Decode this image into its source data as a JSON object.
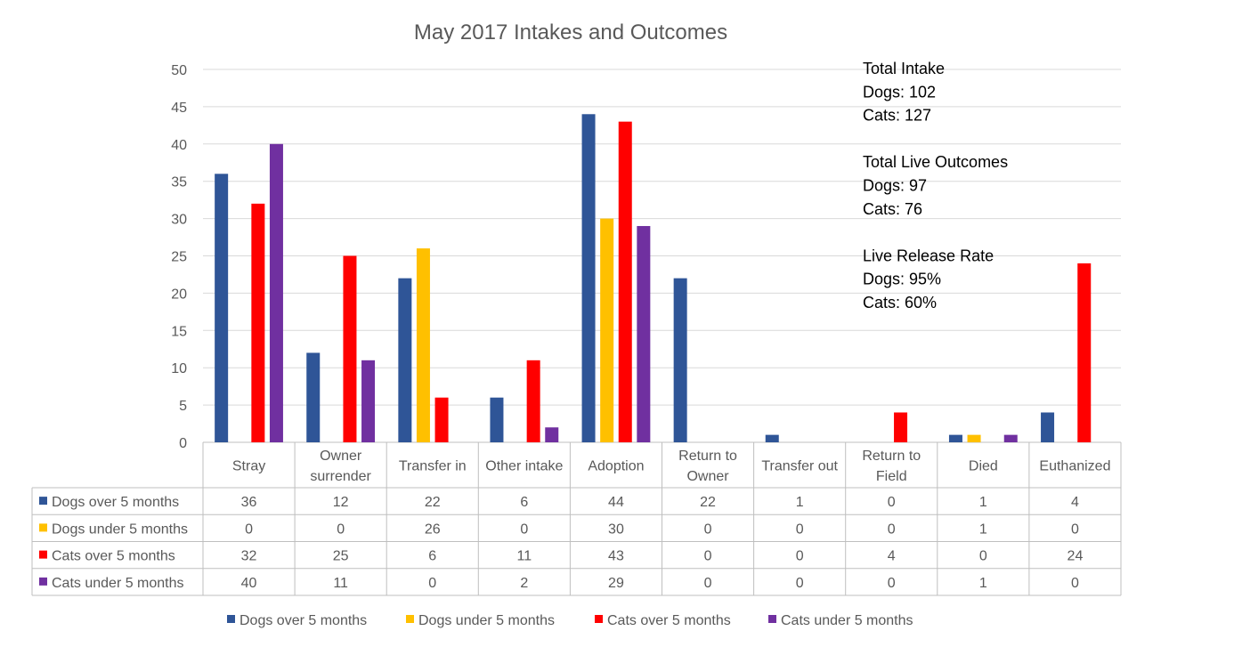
{
  "chart_data": {
    "type": "bar",
    "title": "May 2017 Intakes and Outcomes",
    "categories": [
      [
        "Stray"
      ],
      [
        "Owner",
        "surrender"
      ],
      [
        "Transfer in"
      ],
      [
        "Other intake"
      ],
      [
        "Adoption"
      ],
      [
        "Return to",
        "Owner"
      ],
      [
        "Transfer out"
      ],
      [
        "Return to",
        "Field"
      ],
      [
        "Died"
      ],
      [
        "Euthanized"
      ]
    ],
    "ylim": [
      0,
      50
    ],
    "yticks": [
      "0",
      "5",
      "10",
      "15",
      "20",
      "25",
      "30",
      "35",
      "40",
      "45",
      "50"
    ],
    "grid": true,
    "series": [
      {
        "name": "Dogs over 5 months",
        "color": "#2F5597",
        "values": [
          36,
          12,
          22,
          6,
          44,
          22,
          1,
          0,
          1,
          4
        ]
      },
      {
        "name": "Dogs under 5 months",
        "color": "#FFC000",
        "values": [
          0,
          0,
          26,
          0,
          30,
          0,
          0,
          0,
          1,
          0
        ]
      },
      {
        "name": "Cats over 5 months",
        "color": "#FF0000",
        "values": [
          32,
          25,
          6,
          11,
          43,
          0,
          0,
          4,
          0,
          24
        ]
      },
      {
        "name": "Cats under 5 months",
        "color": "#7030A0",
        "values": [
          40,
          11,
          0,
          2,
          29,
          0,
          0,
          0,
          1,
          0
        ]
      }
    ],
    "annotations": [
      "Total Intake",
      "Dogs: 102",
      "Cats: 127",
      "",
      "Total Live Outcomes",
      "Dogs: 97",
      "Cats: 76",
      "",
      "Live Release Rate",
      "Dogs: 95%",
      "Cats: 60%"
    ],
    "data_table": true,
    "legend_position": "bottom"
  },
  "colors": {
    "grid": "#D9D9D9",
    "axis": "#BFBFBF"
  }
}
